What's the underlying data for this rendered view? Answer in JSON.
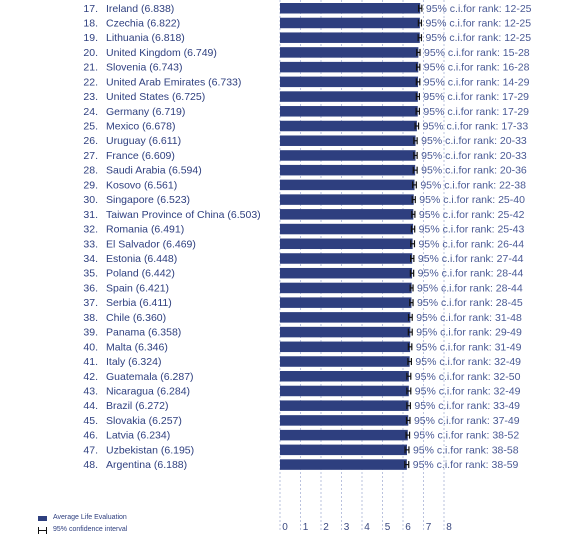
{
  "chart_data": {
    "type": "bar",
    "orientation": "horizontal",
    "rows": [
      {
        "rank": "17.",
        "country": "Ireland",
        "score": "(6.838)",
        "value": 6.838,
        "ci_low": 6.76,
        "ci_high": 6.92,
        "ci_label": "95% c.i.for rank: 12-25"
      },
      {
        "rank": "18.",
        "country": "Czechia",
        "score": "(6.822)",
        "value": 6.822,
        "ci_low": 6.75,
        "ci_high": 6.9,
        "ci_label": "95% c.i.for rank: 12-25"
      },
      {
        "rank": "19.",
        "country": "Lithuania",
        "score": "(6.818)",
        "value": 6.818,
        "ci_low": 6.74,
        "ci_high": 6.9,
        "ci_label": "95% c.i.for rank: 12-25"
      },
      {
        "rank": "20.",
        "country": "United Kingdom",
        "score": "(6.749)",
        "value": 6.749,
        "ci_low": 6.67,
        "ci_high": 6.83,
        "ci_label": "95% c.i.for rank: 15-28"
      },
      {
        "rank": "21.",
        "country": "Slovenia",
        "score": "(6.743)",
        "value": 6.743,
        "ci_low": 6.66,
        "ci_high": 6.82,
        "ci_label": "95% c.i.for rank: 16-28"
      },
      {
        "rank": "22.",
        "country": "United Arab Emirates",
        "score": "(6.733)",
        "value": 6.733,
        "ci_low": 6.65,
        "ci_high": 6.82,
        "ci_label": "95% c.i.for rank: 14-29"
      },
      {
        "rank": "23.",
        "country": "United States",
        "score": "(6.725)",
        "value": 6.725,
        "ci_low": 6.65,
        "ci_high": 6.8,
        "ci_label": "95% c.i.for rank: 17-29"
      },
      {
        "rank": "24.",
        "country": "Germany",
        "score": "(6.719)",
        "value": 6.719,
        "ci_low": 6.64,
        "ci_high": 6.8,
        "ci_label": "95% c.i.for rank: 17-29"
      },
      {
        "rank": "25.",
        "country": "Mexico",
        "score": "(6.678)",
        "value": 6.678,
        "ci_low": 6.59,
        "ci_high": 6.76,
        "ci_label": "95% c.i.for rank: 17-33"
      },
      {
        "rank": "26.",
        "country": "Uruguay",
        "score": "(6.611)",
        "value": 6.611,
        "ci_low": 6.53,
        "ci_high": 6.69,
        "ci_label": "95% c.i.for rank: 20-33"
      },
      {
        "rank": "27.",
        "country": "France",
        "score": "(6.609)",
        "value": 6.609,
        "ci_low": 6.53,
        "ci_high": 6.69,
        "ci_label": "95% c.i.for rank: 20-33"
      },
      {
        "rank": "28.",
        "country": "Saudi Arabia",
        "score": "(6.594)",
        "value": 6.594,
        "ci_low": 6.5,
        "ci_high": 6.69,
        "ci_label": "95% c.i.for rank: 20-36"
      },
      {
        "rank": "29.",
        "country": "Kosovo",
        "score": "(6.561)",
        "value": 6.561,
        "ci_low": 6.47,
        "ci_high": 6.65,
        "ci_label": "95% c.i.for rank: 22-38"
      },
      {
        "rank": "30.",
        "country": "Singapore",
        "score": "(6.523)",
        "value": 6.523,
        "ci_low": 6.45,
        "ci_high": 6.6,
        "ci_label": "95% c.i.for rank: 25-40"
      },
      {
        "rank": "31.",
        "country": "Taiwan Province of China",
        "score": "(6.503)",
        "value": 6.503,
        "ci_low": 6.43,
        "ci_high": 6.58,
        "ci_label": "95% c.i.for rank: 25-42"
      },
      {
        "rank": "32.",
        "country": "Romania",
        "score": "(6.491)",
        "value": 6.491,
        "ci_low": 6.41,
        "ci_high": 6.57,
        "ci_label": "95% c.i.for rank: 25-43"
      },
      {
        "rank": "33.",
        "country": "El Salvador",
        "score": "(6.469)",
        "value": 6.469,
        "ci_low": 6.38,
        "ci_high": 6.56,
        "ci_label": "95% c.i.for rank: 26-44"
      },
      {
        "rank": "34.",
        "country": "Estonia",
        "score": "(6.448)",
        "value": 6.448,
        "ci_low": 6.37,
        "ci_high": 6.53,
        "ci_label": "95% c.i.for rank: 27-44"
      },
      {
        "rank": "35.",
        "country": "Poland",
        "score": "(6.442)",
        "value": 6.442,
        "ci_low": 6.36,
        "ci_high": 6.52,
        "ci_label": "95% c.i.for rank: 28-44"
      },
      {
        "rank": "36.",
        "country": "Spain",
        "score": "(6.421)",
        "value": 6.421,
        "ci_low": 6.35,
        "ci_high": 6.49,
        "ci_label": "95% c.i.for rank: 28-44"
      },
      {
        "rank": "37.",
        "country": "Serbia",
        "score": "(6.411)",
        "value": 6.411,
        "ci_low": 6.33,
        "ci_high": 6.49,
        "ci_label": "95% c.i.for rank: 28-45"
      },
      {
        "rank": "38.",
        "country": "Chile",
        "score": "(6.360)",
        "value": 6.36,
        "ci_low": 6.27,
        "ci_high": 6.45,
        "ci_label": "95% c.i.for rank: 31-48"
      },
      {
        "rank": "39.",
        "country": "Panama",
        "score": "(6.358)",
        "value": 6.358,
        "ci_low": 6.26,
        "ci_high": 6.45,
        "ci_label": "95% c.i.for rank: 29-49"
      },
      {
        "rank": "40.",
        "country": "Malta",
        "score": "(6.346)",
        "value": 6.346,
        "ci_low": 6.26,
        "ci_high": 6.43,
        "ci_label": "95% c.i.for rank: 31-49"
      },
      {
        "rank": "41.",
        "country": "Italy",
        "score": "(6.324)",
        "value": 6.324,
        "ci_low": 6.24,
        "ci_high": 6.41,
        "ci_label": "95% c.i.for rank: 32-49"
      },
      {
        "rank": "42.",
        "country": "Guatemala",
        "score": "(6.287)",
        "value": 6.287,
        "ci_low": 6.19,
        "ci_high": 6.38,
        "ci_label": "95% c.i.for rank: 32-50"
      },
      {
        "rank": "43.",
        "country": "Nicaragua",
        "score": "(6.284)",
        "value": 6.284,
        "ci_low": 6.19,
        "ci_high": 6.38,
        "ci_label": "95% c.i.for rank: 32-49"
      },
      {
        "rank": "44.",
        "country": "Brazil",
        "score": "(6.272)",
        "value": 6.272,
        "ci_low": 6.19,
        "ci_high": 6.36,
        "ci_label": "95% c.i.for rank: 33-49"
      },
      {
        "rank": "45.",
        "country": "Slovakia",
        "score": "(6.257)",
        "value": 6.257,
        "ci_low": 6.17,
        "ci_high": 6.34,
        "ci_label": "95% c.i.for rank: 37-49"
      },
      {
        "rank": "46.",
        "country": "Latvia",
        "score": "(6.234)",
        "value": 6.234,
        "ci_low": 6.15,
        "ci_high": 6.32,
        "ci_label": "95% c.i.for rank: 38-52"
      },
      {
        "rank": "47.",
        "country": "Uzbekistan",
        "score": "(6.195)",
        "value": 6.195,
        "ci_low": 6.1,
        "ci_high": 6.29,
        "ci_label": "95% c.i.for rank: 38-58"
      },
      {
        "rank": "48.",
        "country": "Argentina",
        "score": "(6.188)",
        "value": 6.188,
        "ci_low": 6.09,
        "ci_high": 6.28,
        "ci_label": "95% c.i.for rank: 38-59"
      }
    ],
    "xlim": [
      0,
      8
    ],
    "xticks": [
      "0",
      "1",
      "2",
      "3",
      "4",
      "5",
      "6",
      "7",
      "8"
    ],
    "grid": "vertical-dashed",
    "legend": {
      "placement": "bottom-left",
      "bar_label": "Average Life Evaluation",
      "ci_label": "95% confidence interval"
    }
  },
  "colors": {
    "bar": "#2e3f7f",
    "ci": "#111111",
    "label": "#2e3f7f",
    "ci_text": "#4a5a95",
    "grid": "#a9b4d6"
  }
}
